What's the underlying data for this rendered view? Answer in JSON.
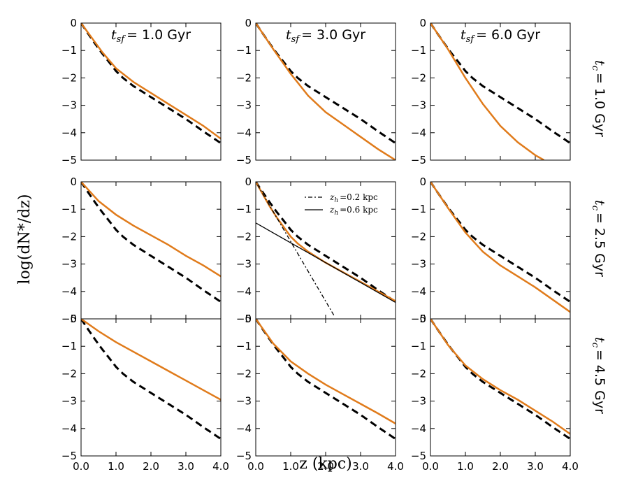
{
  "chart_data": {
    "type": "line",
    "xlabel": "z (kpc)",
    "ylabel": "log(dN*/dz)",
    "xlim": [
      0,
      4
    ],
    "ylim": [
      -5,
      0
    ],
    "xticks": [
      "0.0",
      "1.0",
      "2.0",
      "3.0",
      "4.0"
    ],
    "yticks": [
      "0",
      "−1",
      "−2",
      "−3",
      "−4",
      "−5"
    ],
    "col_titles": [
      {
        "sym": "t",
        "sub": "sf",
        "text": "= 1.0 Gyr"
      },
      {
        "sym": "t",
        "sub": "sf",
        "text": "= 3.0 Gyr"
      },
      {
        "sym": "t",
        "sub": "sf",
        "text": "= 6.0 Gyr"
      }
    ],
    "row_titles": [
      {
        "sym": "t",
        "sub": "c",
        "text": "= 1.0 Gyr"
      },
      {
        "sym": "t",
        "sub": "c",
        "text": "= 2.5 Gyr"
      },
      {
        "sym": "t",
        "sub": "c",
        "text": "= 4.5 Gyr"
      }
    ],
    "series_styles": {
      "model": {
        "color": "#e07b1b",
        "dash": "solid",
        "width": 2.5
      },
      "reference": {
        "color": "#000000",
        "dash": "dashed",
        "width": 3
      }
    },
    "reference": {
      "name": "reference",
      "x": [
        0,
        0.2,
        0.4,
        0.6,
        0.8,
        1.0,
        1.2,
        1.5,
        2.0,
        2.5,
        3.0,
        3.5,
        4.0
      ],
      "y": [
        0,
        -0.38,
        -0.75,
        -1.1,
        -1.42,
        -1.75,
        -2.0,
        -2.3,
        -2.7,
        -3.1,
        -3.5,
        -3.95,
        -4.38
      ]
    },
    "panels": [
      {
        "row": 0,
        "col": 0,
        "model": {
          "x": [
            0,
            0.2,
            0.4,
            0.6,
            0.8,
            1.0,
            1.5,
            2.0,
            2.5,
            3.0,
            3.5,
            4.0
          ],
          "y": [
            0,
            -0.35,
            -0.7,
            -1.05,
            -1.35,
            -1.65,
            -2.15,
            -2.55,
            -2.95,
            -3.35,
            -3.75,
            -4.22
          ]
        }
      },
      {
        "row": 0,
        "col": 1,
        "model": {
          "x": [
            0,
            0.5,
            1.0,
            1.5,
            2.0,
            2.5,
            3.0,
            3.5,
            4.0
          ],
          "y": [
            0,
            -0.95,
            -1.85,
            -2.65,
            -3.25,
            -3.7,
            -4.15,
            -4.6,
            -5.0
          ]
        }
      },
      {
        "row": 0,
        "col": 2,
        "model": {
          "x": [
            0,
            0.5,
            1.0,
            1.5,
            2.0,
            2.5,
            3.0,
            3.25
          ],
          "y": [
            0,
            -0.95,
            -2.0,
            -2.95,
            -3.75,
            -4.35,
            -4.82,
            -5.0
          ]
        }
      },
      {
        "row": 1,
        "col": 0,
        "model": {
          "x": [
            0,
            0.5,
            1.0,
            1.5,
            2.0,
            2.5,
            3.0,
            3.5,
            4.0
          ],
          "y": [
            0,
            -0.7,
            -1.2,
            -1.6,
            -1.95,
            -2.3,
            -2.7,
            -3.05,
            -3.45
          ]
        }
      },
      {
        "row": 1,
        "col": 1,
        "model": {
          "x": [
            0,
            0.2,
            0.4,
            0.6,
            0.8,
            1.0,
            1.2,
            1.5,
            2.0,
            2.5,
            3.0,
            3.5,
            4.0
          ],
          "y": [
            0,
            -0.45,
            -0.9,
            -1.3,
            -1.65,
            -2.0,
            -2.25,
            -2.55,
            -2.95,
            -3.3,
            -3.65,
            -4.0,
            -4.35
          ]
        }
      },
      {
        "row": 1,
        "col": 2,
        "model": {
          "x": [
            0,
            0.5,
            1.0,
            1.5,
            2.0,
            2.5,
            3.0,
            3.5,
            4.0
          ],
          "y": [
            0,
            -0.95,
            -1.85,
            -2.55,
            -3.05,
            -3.45,
            -3.85,
            -4.3,
            -4.75
          ]
        }
      },
      {
        "row": 2,
        "col": 0,
        "model": {
          "x": [
            0,
            0.5,
            1.0,
            1.5,
            2.0,
            2.5,
            3.0,
            3.5,
            4.0
          ],
          "y": [
            0,
            -0.45,
            -0.85,
            -1.2,
            -1.55,
            -1.9,
            -2.25,
            -2.6,
            -2.95
          ]
        }
      },
      {
        "row": 2,
        "col": 1,
        "model": {
          "x": [
            0,
            0.5,
            1.0,
            1.5,
            2.0,
            2.5,
            3.0,
            3.5,
            4.0
          ],
          "y": [
            0,
            -0.9,
            -1.55,
            -2.0,
            -2.4,
            -2.75,
            -3.1,
            -3.45,
            -3.82
          ]
        }
      },
      {
        "row": 2,
        "col": 2,
        "model": {
          "x": [
            0,
            0.5,
            1.0,
            1.5,
            2.0,
            2.5,
            3.0,
            3.5,
            4.0
          ],
          "y": [
            0,
            -0.95,
            -1.7,
            -2.2,
            -2.6,
            -2.95,
            -3.35,
            -3.75,
            -4.2
          ]
        }
      }
    ],
    "fit_panel": {
      "row": 1,
      "col": 1,
      "legend": [
        {
          "sym": "z",
          "sub": "h",
          "text": "=0.2 kpc",
          "style": "dashdot"
        },
        {
          "sym": "z",
          "sub": "h",
          "text": "=0.6 kpc",
          "style": "solid"
        }
      ],
      "fits": [
        {
          "name": "z_h=0.2 kpc",
          "style": "dashdot",
          "x": [
            0,
            2.25
          ],
          "y": [
            0,
            -4.9
          ]
        },
        {
          "name": "z_h=0.6 kpc",
          "style": "solid",
          "x": [
            0,
            4.0
          ],
          "y": [
            -1.5,
            -4.4
          ]
        }
      ]
    }
  }
}
